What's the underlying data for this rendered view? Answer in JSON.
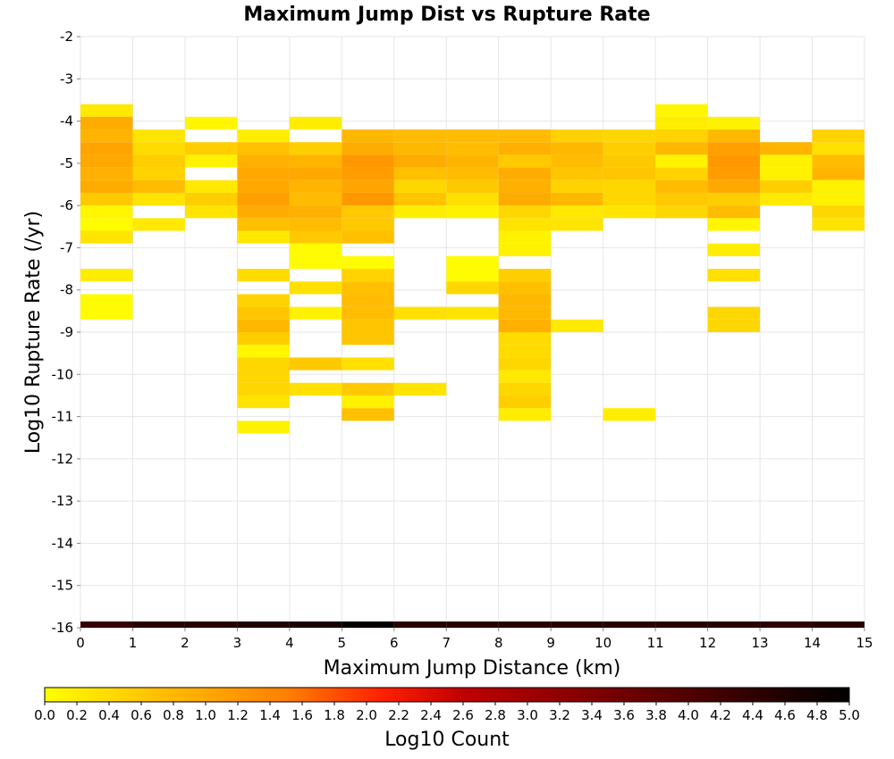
{
  "chart_data": {
    "type": "heatmap",
    "title": "Maximum Jump Dist vs Rupture Rate",
    "xlabel": "Maximum Jump Distance (km)",
    "ylabel": "Log10 Rupture Rate (/yr)",
    "xlim": [
      0,
      15
    ],
    "ylim": [
      -16,
      -2
    ],
    "x_ticks": [
      "0",
      "1",
      "2",
      "3",
      "4",
      "5",
      "6",
      "7",
      "8",
      "9",
      "10",
      "11",
      "12",
      "13",
      "14",
      "15"
    ],
    "y_ticks": [
      "-2",
      "-3",
      "-4",
      "-5",
      "-6",
      "-7",
      "-8",
      "-9",
      "-10",
      "-11",
      "-12",
      "-13",
      "-14",
      "-15",
      "-16"
    ],
    "grid": true,
    "bin_width_x": 1,
    "bin_height_y": 0.3,
    "colorbar": {
      "label": "Log10 Count",
      "min": 0.0,
      "max": 5.0,
      "ticks": [
        "0.0",
        "0.2",
        "0.4",
        "0.6",
        "0.8",
        "1.0",
        "1.2",
        "1.4",
        "1.6",
        "1.8",
        "2.0",
        "2.2",
        "2.4",
        "2.6",
        "2.8",
        "3.0",
        "3.2",
        "3.4",
        "3.6",
        "3.8",
        "4.0",
        "4.2",
        "4.4",
        "4.6",
        "4.8",
        "5.0"
      ],
      "colors": [
        "#ffff00",
        "#ffc000",
        "#ff8000",
        "#ff2000",
        "#c00000",
        "#800000",
        "#400000",
        "#000000"
      ]
    },
    "marginal_bar": {
      "y": -16,
      "values": [
        4.3,
        4.5,
        4.5,
        4.6,
        4.7,
        4.9,
        4.5,
        4.5,
        4.5,
        4.5,
        4.5,
        4.5,
        4.5,
        4.4,
        4.5
      ]
    },
    "cells": [
      {
        "x": 0,
        "y": -3.6,
        "v": 0.25
      },
      {
        "x": 0,
        "y": -3.9,
        "v": 0.95
      },
      {
        "x": 0,
        "y": -4.2,
        "v": 0.85
      },
      {
        "x": 0,
        "y": -4.5,
        "v": 1.05
      },
      {
        "x": 0,
        "y": -4.8,
        "v": 1.0
      },
      {
        "x": 0,
        "y": -5.1,
        "v": 0.9
      },
      {
        "x": 0,
        "y": -5.4,
        "v": 0.95
      },
      {
        "x": 0,
        "y": -5.7,
        "v": 0.6
      },
      {
        "x": 0,
        "y": -6.0,
        "v": 0.1
      },
      {
        "x": 0,
        "y": -6.3,
        "v": 0.05
      },
      {
        "x": 0,
        "y": -6.6,
        "v": 0.3
      },
      {
        "x": 0,
        "y": -7.5,
        "v": 0.2
      },
      {
        "x": 0,
        "y": -8.1,
        "v": 0.05
      },
      {
        "x": 0,
        "y": -8.4,
        "v": 0.05
      },
      {
        "x": 1,
        "y": -4.2,
        "v": 0.3
      },
      {
        "x": 1,
        "y": -4.5,
        "v": 0.4
      },
      {
        "x": 1,
        "y": -4.8,
        "v": 0.55
      },
      {
        "x": 1,
        "y": -5.1,
        "v": 0.5
      },
      {
        "x": 1,
        "y": -5.4,
        "v": 0.75
      },
      {
        "x": 1,
        "y": -5.7,
        "v": 0.3
      },
      {
        "x": 1,
        "y": -6.3,
        "v": 0.25
      },
      {
        "x": 2,
        "y": -3.9,
        "v": 0.1
      },
      {
        "x": 2,
        "y": -4.5,
        "v": 0.55
      },
      {
        "x": 2,
        "y": -4.8,
        "v": 0.15
      },
      {
        "x": 2,
        "y": -5.4,
        "v": 0.25
      },
      {
        "x": 2,
        "y": -5.7,
        "v": 0.55
      },
      {
        "x": 2,
        "y": -6.0,
        "v": 0.3
      },
      {
        "x": 3,
        "y": -4.2,
        "v": 0.2
      },
      {
        "x": 3,
        "y": -4.5,
        "v": 0.7
      },
      {
        "x": 3,
        "y": -4.8,
        "v": 0.9
      },
      {
        "x": 3,
        "y": -5.1,
        "v": 1.0
      },
      {
        "x": 3,
        "y": -5.4,
        "v": 1.0
      },
      {
        "x": 3,
        "y": -5.7,
        "v": 1.1
      },
      {
        "x": 3,
        "y": -6.0,
        "v": 0.95
      },
      {
        "x": 3,
        "y": -6.3,
        "v": 0.7
      },
      {
        "x": 3,
        "y": -6.6,
        "v": 0.25
      },
      {
        "x": 3,
        "y": -7.5,
        "v": 0.4
      },
      {
        "x": 3,
        "y": -8.1,
        "v": 0.5
      },
      {
        "x": 3,
        "y": -8.4,
        "v": 0.65
      },
      {
        "x": 3,
        "y": -8.7,
        "v": 0.8
      },
      {
        "x": 3,
        "y": -9.0,
        "v": 0.55
      },
      {
        "x": 3,
        "y": -9.3,
        "v": 0.1
      },
      {
        "x": 3,
        "y": -9.6,
        "v": 0.45
      },
      {
        "x": 3,
        "y": -9.9,
        "v": 0.45
      },
      {
        "x": 3,
        "y": -10.2,
        "v": 0.45
      },
      {
        "x": 3,
        "y": -10.5,
        "v": 0.3
      },
      {
        "x": 3,
        "y": -11.1,
        "v": 0.15
      },
      {
        "x": 4,
        "y": -3.9,
        "v": 0.2
      },
      {
        "x": 4,
        "y": -4.5,
        "v": 0.55
      },
      {
        "x": 4,
        "y": -4.8,
        "v": 0.85
      },
      {
        "x": 4,
        "y": -5.1,
        "v": 1.0
      },
      {
        "x": 4,
        "y": -5.4,
        "v": 0.85
      },
      {
        "x": 4,
        "y": -5.7,
        "v": 0.75
      },
      {
        "x": 4,
        "y": -6.0,
        "v": 0.9
      },
      {
        "x": 4,
        "y": -6.3,
        "v": 0.75
      },
      {
        "x": 4,
        "y": -6.6,
        "v": 0.6
      },
      {
        "x": 4,
        "y": -6.9,
        "v": 0.05
      },
      {
        "x": 4,
        "y": -7.2,
        "v": 0.05
      },
      {
        "x": 4,
        "y": -7.8,
        "v": 0.35
      },
      {
        "x": 4,
        "y": -8.4,
        "v": 0.15
      },
      {
        "x": 4,
        "y": -9.6,
        "v": 0.6
      },
      {
        "x": 4,
        "y": -10.2,
        "v": 0.35
      },
      {
        "x": 5,
        "y": -4.2,
        "v": 0.8
      },
      {
        "x": 5,
        "y": -4.5,
        "v": 0.95
      },
      {
        "x": 5,
        "y": -4.8,
        "v": 1.2
      },
      {
        "x": 5,
        "y": -5.1,
        "v": 1.15
      },
      {
        "x": 5,
        "y": -5.4,
        "v": 1.05
      },
      {
        "x": 5,
        "y": -5.7,
        "v": 1.2
      },
      {
        "x": 5,
        "y": -6.0,
        "v": 0.6
      },
      {
        "x": 5,
        "y": -6.3,
        "v": 0.6
      },
      {
        "x": 5,
        "y": -6.6,
        "v": 0.7
      },
      {
        "x": 5,
        "y": -7.2,
        "v": 0.05
      },
      {
        "x": 5,
        "y": -7.5,
        "v": 0.5
      },
      {
        "x": 5,
        "y": -7.8,
        "v": 0.7
      },
      {
        "x": 5,
        "y": -8.1,
        "v": 0.75
      },
      {
        "x": 5,
        "y": -8.4,
        "v": 0.75
      },
      {
        "x": 5,
        "y": -8.7,
        "v": 0.65
      },
      {
        "x": 5,
        "y": -9.0,
        "v": 0.65
      },
      {
        "x": 5,
        "y": -9.6,
        "v": 0.35
      },
      {
        "x": 5,
        "y": -10.2,
        "v": 0.6
      },
      {
        "x": 5,
        "y": -10.5,
        "v": 0.15
      },
      {
        "x": 5,
        "y": -10.8,
        "v": 0.7
      },
      {
        "x": 6,
        "y": -4.2,
        "v": 0.75
      },
      {
        "x": 6,
        "y": -4.5,
        "v": 0.8
      },
      {
        "x": 6,
        "y": -4.8,
        "v": 0.95
      },
      {
        "x": 6,
        "y": -5.1,
        "v": 0.7
      },
      {
        "x": 6,
        "y": -5.4,
        "v": 0.45
      },
      {
        "x": 6,
        "y": -5.7,
        "v": 0.65
      },
      {
        "x": 6,
        "y": -6.0,
        "v": 0.2
      },
      {
        "x": 6,
        "y": -8.4,
        "v": 0.35
      },
      {
        "x": 6,
        "y": -10.2,
        "v": 0.3
      },
      {
        "x": 7,
        "y": -4.2,
        "v": 0.75
      },
      {
        "x": 7,
        "y": -4.5,
        "v": 0.75
      },
      {
        "x": 7,
        "y": -4.8,
        "v": 0.85
      },
      {
        "x": 7,
        "y": -5.1,
        "v": 0.75
      },
      {
        "x": 7,
        "y": -5.4,
        "v": 0.6
      },
      {
        "x": 7,
        "y": -5.7,
        "v": 0.35
      },
      {
        "x": 7,
        "y": -6.0,
        "v": 0.15
      },
      {
        "x": 7,
        "y": -7.2,
        "v": 0.05
      },
      {
        "x": 7,
        "y": -7.5,
        "v": 0.05
      },
      {
        "x": 7,
        "y": -7.8,
        "v": 0.45
      },
      {
        "x": 7,
        "y": -8.4,
        "v": 0.3
      },
      {
        "x": 8,
        "y": -4.2,
        "v": 0.75
      },
      {
        "x": 8,
        "y": -4.5,
        "v": 0.9
      },
      {
        "x": 8,
        "y": -4.8,
        "v": 0.6
      },
      {
        "x": 8,
        "y": -5.1,
        "v": 0.95
      },
      {
        "x": 8,
        "y": -5.4,
        "v": 0.9
      },
      {
        "x": 8,
        "y": -5.7,
        "v": 0.95
      },
      {
        "x": 8,
        "y": -6.0,
        "v": 0.45
      },
      {
        "x": 8,
        "y": -6.3,
        "v": 0.3
      },
      {
        "x": 8,
        "y": -6.6,
        "v": 0.15
      },
      {
        "x": 8,
        "y": -6.9,
        "v": 0.15
      },
      {
        "x": 8,
        "y": -7.5,
        "v": 0.55
      },
      {
        "x": 8,
        "y": -7.8,
        "v": 0.7
      },
      {
        "x": 8,
        "y": -8.1,
        "v": 0.8
      },
      {
        "x": 8,
        "y": -8.4,
        "v": 0.8
      },
      {
        "x": 8,
        "y": -8.7,
        "v": 0.9
      },
      {
        "x": 8,
        "y": -9.0,
        "v": 0.4
      },
      {
        "x": 8,
        "y": -9.3,
        "v": 0.4
      },
      {
        "x": 8,
        "y": -9.6,
        "v": 0.45
      },
      {
        "x": 8,
        "y": -9.9,
        "v": 0.25
      },
      {
        "x": 8,
        "y": -10.2,
        "v": 0.45
      },
      {
        "x": 8,
        "y": -10.5,
        "v": 0.55
      },
      {
        "x": 8,
        "y": -10.8,
        "v": 0.2
      },
      {
        "x": 9,
        "y": -4.2,
        "v": 0.5
      },
      {
        "x": 9,
        "y": -4.5,
        "v": 0.8
      },
      {
        "x": 9,
        "y": -4.8,
        "v": 0.75
      },
      {
        "x": 9,
        "y": -5.1,
        "v": 0.65
      },
      {
        "x": 9,
        "y": -5.4,
        "v": 0.5
      },
      {
        "x": 9,
        "y": -5.7,
        "v": 0.8
      },
      {
        "x": 9,
        "y": -6.0,
        "v": 0.25
      },
      {
        "x": 9,
        "y": -6.3,
        "v": 0.3
      },
      {
        "x": 9,
        "y": -8.7,
        "v": 0.25
      },
      {
        "x": 10,
        "y": -4.2,
        "v": 0.45
      },
      {
        "x": 10,
        "y": -4.5,
        "v": 0.55
      },
      {
        "x": 10,
        "y": -4.8,
        "v": 0.6
      },
      {
        "x": 10,
        "y": -5.1,
        "v": 0.65
      },
      {
        "x": 10,
        "y": -5.4,
        "v": 0.45
      },
      {
        "x": 10,
        "y": -5.7,
        "v": 0.45
      },
      {
        "x": 10,
        "y": -6.0,
        "v": 0.3
      },
      {
        "x": 10,
        "y": -10.8,
        "v": 0.2
      },
      {
        "x": 11,
        "y": -3.6,
        "v": 0.1
      },
      {
        "x": 11,
        "y": -3.9,
        "v": 0.2
      },
      {
        "x": 11,
        "y": -4.2,
        "v": 0.5
      },
      {
        "x": 11,
        "y": -4.5,
        "v": 0.8
      },
      {
        "x": 11,
        "y": -4.8,
        "v": 0.15
      },
      {
        "x": 11,
        "y": -5.1,
        "v": 0.5
      },
      {
        "x": 11,
        "y": -5.4,
        "v": 0.75
      },
      {
        "x": 11,
        "y": -5.7,
        "v": 0.6
      },
      {
        "x": 11,
        "y": -6.0,
        "v": 0.45
      },
      {
        "x": 12,
        "y": -3.9,
        "v": 0.15
      },
      {
        "x": 12,
        "y": -4.2,
        "v": 0.8
      },
      {
        "x": 12,
        "y": -4.5,
        "v": 1.1
      },
      {
        "x": 12,
        "y": -4.8,
        "v": 1.2
      },
      {
        "x": 12,
        "y": -5.1,
        "v": 1.15
      },
      {
        "x": 12,
        "y": -5.4,
        "v": 1.0
      },
      {
        "x": 12,
        "y": -5.7,
        "v": 0.55
      },
      {
        "x": 12,
        "y": -6.0,
        "v": 0.75
      },
      {
        "x": 12,
        "y": -6.3,
        "v": 0.1
      },
      {
        "x": 12,
        "y": -6.9,
        "v": 0.2
      },
      {
        "x": 12,
        "y": -7.5,
        "v": 0.35
      },
      {
        "x": 12,
        "y": -8.4,
        "v": 0.45
      },
      {
        "x": 12,
        "y": -8.7,
        "v": 0.45
      },
      {
        "x": 13,
        "y": -4.5,
        "v": 0.85
      },
      {
        "x": 13,
        "y": -4.8,
        "v": 0.15
      },
      {
        "x": 13,
        "y": -5.1,
        "v": 0.15
      },
      {
        "x": 13,
        "y": -5.4,
        "v": 0.55
      },
      {
        "x": 13,
        "y": -5.7,
        "v": 0.25
      },
      {
        "x": 14,
        "y": -4.2,
        "v": 0.5
      },
      {
        "x": 14,
        "y": -4.5,
        "v": 0.35
      },
      {
        "x": 14,
        "y": -4.8,
        "v": 0.75
      },
      {
        "x": 14,
        "y": -5.1,
        "v": 0.85
      },
      {
        "x": 14,
        "y": -5.4,
        "v": 0.15
      },
      {
        "x": 14,
        "y": -5.7,
        "v": 0.15
      },
      {
        "x": 14,
        "y": -6.0,
        "v": 0.45
      },
      {
        "x": 14,
        "y": -6.3,
        "v": 0.3
      }
    ]
  }
}
